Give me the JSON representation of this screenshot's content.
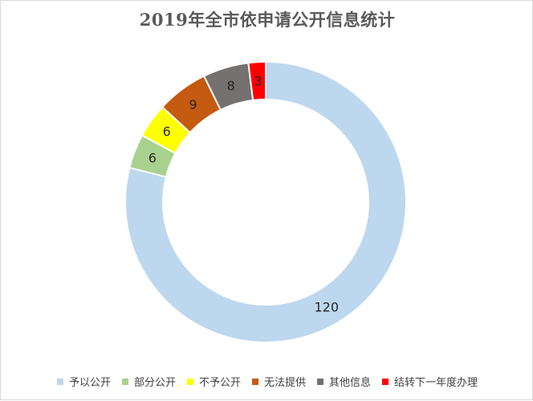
{
  "chart_data": {
    "type": "pie",
    "style": "donut",
    "title": "2019年全市依申请公开信息统计",
    "categories": [
      "予以公开",
      "部分公开",
      "不予公开",
      "无法提供",
      "其他信息",
      "结转下一年度办理"
    ],
    "values": [
      120,
      6,
      6,
      9,
      8,
      3
    ],
    "data_labels": [
      "120",
      "6",
      "6",
      "9",
      "8",
      "3"
    ],
    "colors": [
      "#BDD7EE",
      "#A9D18E",
      "#FFFF00",
      "#C55A11",
      "#767171",
      "#FF0000"
    ],
    "legend_position": "bottom"
  }
}
